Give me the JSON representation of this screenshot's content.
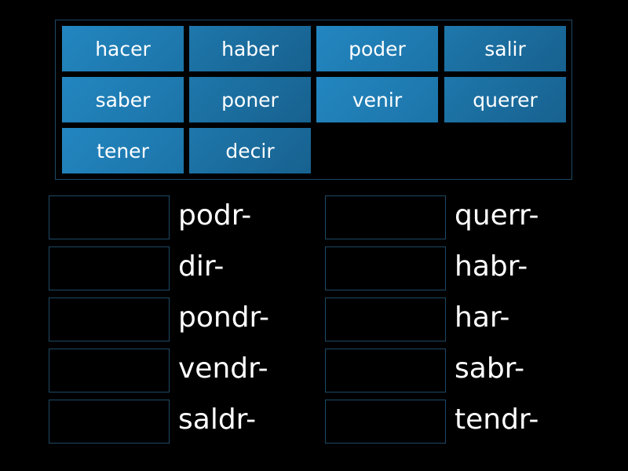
{
  "tiles": [
    "hacer",
    "haber",
    "poder",
    "salir",
    "saber",
    "poner",
    "venir",
    "querer",
    "tener",
    "decir"
  ],
  "left_stems": [
    "podr-",
    "dir-",
    "pondr-",
    "vendr-",
    "saldr-"
  ],
  "right_stems": [
    "querr-",
    "habr-",
    "har-",
    "sabr-",
    "tendr-"
  ],
  "colors": {
    "tile_light": "#2386c0",
    "tile_dark": "#17618f",
    "border": "#1d4a66",
    "background": "#000000"
  }
}
